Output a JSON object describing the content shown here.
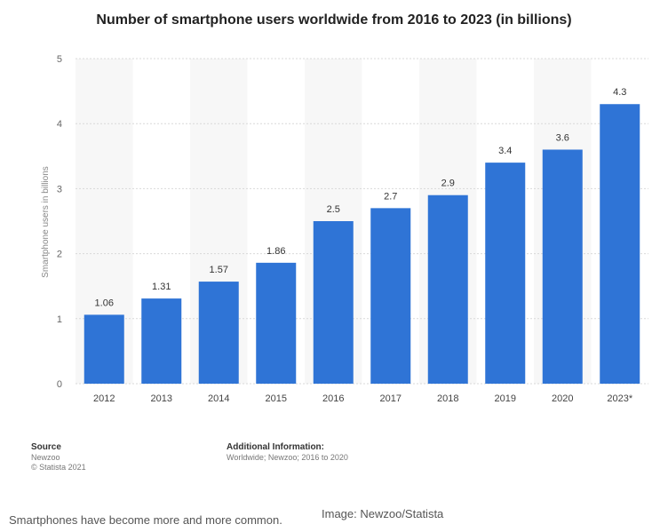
{
  "chart_data": {
    "type": "bar",
    "title": "Number of smartphone users worldwide from 2016 to 2023 (in billions)",
    "xlabel": "",
    "ylabel": "Smartphone users in billions",
    "categories": [
      "2012",
      "2013",
      "2014",
      "2015",
      "2016",
      "2017",
      "2018",
      "2019",
      "2020",
      "2023*"
    ],
    "values": [
      1.06,
      1.31,
      1.57,
      1.86,
      2.5,
      2.7,
      2.9,
      3.4,
      3.6,
      4.3
    ],
    "data_labels": [
      "1.06",
      "1.31",
      "1.57",
      "1.86",
      "2.5",
      "2.7",
      "2.9",
      "3.4",
      "3.6",
      "4.3"
    ],
    "ylim": [
      0,
      5
    ],
    "yticks": [
      "0",
      "1",
      "2",
      "3",
      "4",
      "5"
    ],
    "grid": true,
    "bar_color": "#2f74d6"
  },
  "footer": {
    "source_heading": "Source",
    "source_lines": [
      "Newzoo",
      "© Statista 2021"
    ],
    "info_heading": "Additional Information:",
    "info_lines": [
      "Worldwide; Newzoo; 2016 to 2020"
    ]
  },
  "caption": {
    "text": "Smartphones have become more and more common.",
    "credit": "Image: Newzoo/Statista"
  }
}
